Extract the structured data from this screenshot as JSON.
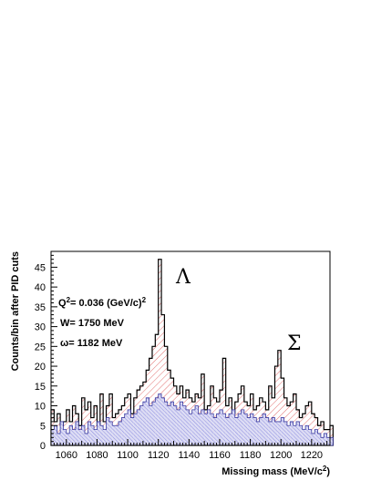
{
  "chart_data": {
    "type": "bar",
    "histogram": true,
    "xlabel": "Missing mass (MeV/c",
    "xlabel_sup": "2",
    "xlabel_end": ")",
    "ylabel": "Counts/bin after PID cuts",
    "xlim": [
      1050,
      1232
    ],
    "ylim": [
      0,
      49
    ],
    "bin_width": 2,
    "x_start": 1050,
    "xticks": [
      "1060",
      "1080",
      "1100",
      "1120",
      "1140",
      "1160",
      "1180",
      "1200",
      "1220"
    ],
    "yticks": [
      "0",
      "5",
      "10",
      "15",
      "20",
      "25",
      "30",
      "35",
      "40",
      "45"
    ],
    "series": [
      {
        "style": "red-hatched-outline",
        "values": [
          9,
          6,
          8,
          5,
          6,
          9,
          6,
          10,
          8,
          5,
          12,
          9,
          11,
          7,
          10,
          5,
          13,
          6,
          10,
          13,
          7,
          8,
          9,
          10,
          12,
          13,
          8,
          12,
          14,
          15,
          16,
          19,
          22,
          25,
          28,
          47,
          33,
          25,
          19,
          17,
          15,
          13,
          15,
          12,
          14,
          12,
          11,
          13,
          12,
          18,
          9,
          10,
          15,
          12,
          11,
          14,
          22,
          10,
          12,
          8,
          11,
          13,
          15,
          11,
          10,
          13,
          9,
          10,
          12,
          11,
          9,
          15,
          12,
          20,
          24,
          17,
          12,
          10,
          11,
          13,
          9,
          7,
          8,
          10,
          11,
          8,
          7,
          5,
          6,
          4,
          4,
          5
        ]
      },
      {
        "style": "blue-hatched-filled",
        "values": [
          4,
          5,
          3,
          6,
          4,
          3,
          5,
          4,
          6,
          4,
          5,
          3,
          6,
          5,
          4,
          6,
          5,
          4,
          7,
          6,
          5,
          5,
          6,
          7,
          8,
          9,
          7,
          8,
          9,
          10,
          11,
          12,
          10,
          11,
          12,
          13,
          12,
          11,
          10,
          11,
          10,
          9,
          11,
          10,
          9,
          8,
          9,
          10,
          8,
          9,
          8,
          9,
          8,
          7,
          8,
          9,
          8,
          7,
          8,
          9,
          7,
          8,
          9,
          8,
          7,
          8,
          7,
          6,
          7,
          8,
          7,
          6,
          7,
          6,
          6,
          7,
          6,
          5,
          6,
          5,
          6,
          5,
          4,
          5,
          4,
          3,
          4,
          3,
          2,
          3,
          2,
          2
        ]
      }
    ],
    "annotations": {
      "q2_label": "Q",
      "q2_sup": "2",
      "q2_value": "= 0.036 (GeV/c)",
      "q2_unit_sup": "2",
      "w_label": "W= 1750 MeV",
      "omega_label": "ω= 1182 MeV",
      "lambda_label": "Λ",
      "sigma_label": "Σ"
    }
  }
}
